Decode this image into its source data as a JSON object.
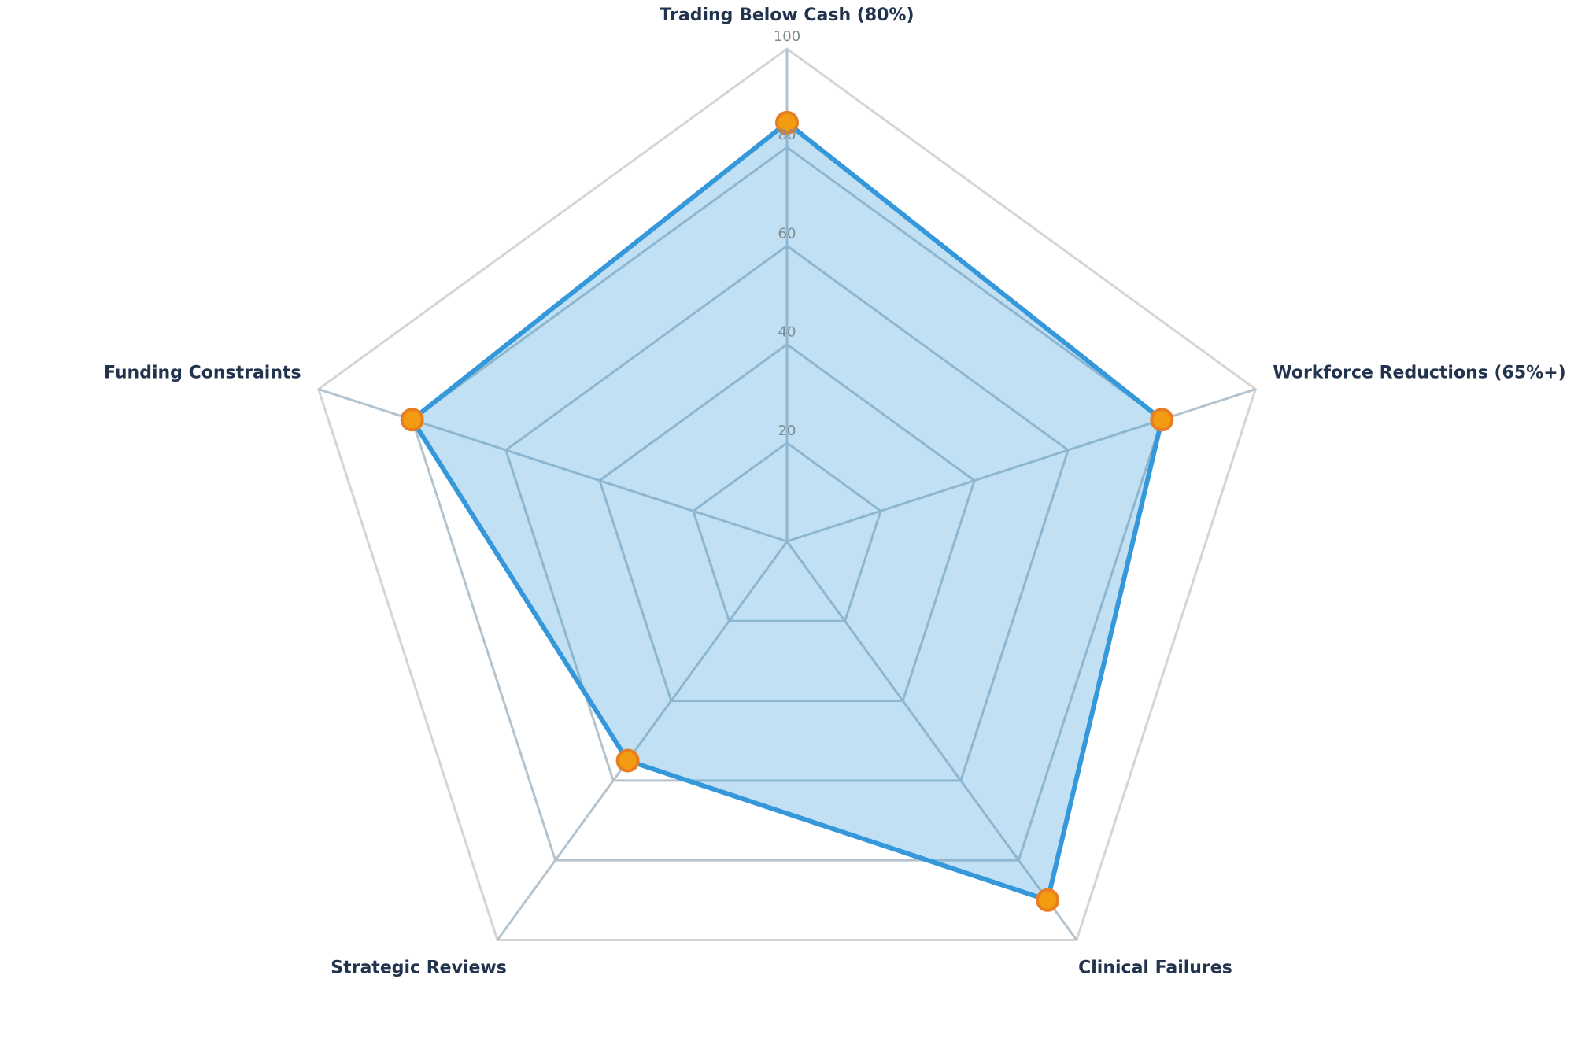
{
  "chart_data": {
    "type": "radar",
    "axes": [
      "Trading Below Cash (80%)",
      "Workforce Reductions (65%+)",
      "Clinical Failures",
      "Strategic Reviews",
      "Funding Constraints"
    ],
    "series": [
      {
        "values": [
          85,
          80,
          90,
          55,
          80
        ]
      }
    ],
    "rlim": [
      0,
      100
    ],
    "ticks": [
      "20",
      "40",
      "60",
      "80",
      "100"
    ],
    "tick_values": [
      20,
      40,
      60,
      80,
      100
    ],
    "grid": true,
    "colors": {
      "line": "#3498db",
      "fill": "#3498db",
      "marker_fill": "#f39c12",
      "marker_stroke": "#e67e22",
      "outer_grid": "#d5d5d5",
      "inner_grid": "#b4c3cd",
      "label": "#22344d",
      "tick": "#7f8c8d"
    }
  }
}
